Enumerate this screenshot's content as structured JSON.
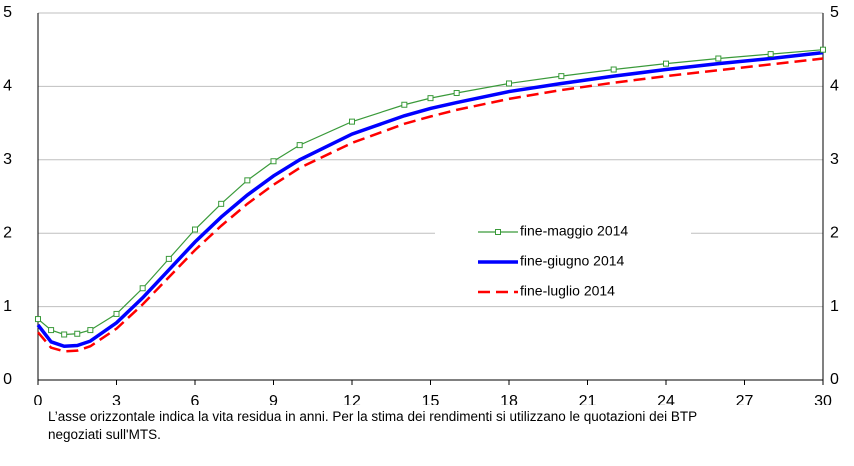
{
  "chart_data": {
    "type": "line",
    "x": [
      0,
      0.5,
      1,
      1.5,
      2,
      3,
      4,
      5,
      6,
      7,
      8,
      9,
      10,
      12,
      14,
      15,
      16,
      18,
      20,
      22,
      24,
      26,
      28,
      30
    ],
    "series": [
      {
        "name": "fine-maggio 2014",
        "color": "#3a9a3a",
        "style": "markers",
        "values": [
          0.83,
          0.68,
          0.62,
          0.63,
          0.68,
          0.9,
          1.25,
          1.65,
          2.05,
          2.4,
          2.72,
          2.98,
          3.2,
          3.52,
          3.75,
          3.84,
          3.91,
          4.04,
          4.14,
          4.23,
          4.31,
          4.38,
          4.44,
          4.5
        ]
      },
      {
        "name": "fine-giugno 2014",
        "color": "#0000ff",
        "style": "solid",
        "values": [
          0.75,
          0.52,
          0.46,
          0.47,
          0.53,
          0.78,
          1.12,
          1.5,
          1.88,
          2.22,
          2.52,
          2.78,
          3.0,
          3.35,
          3.6,
          3.7,
          3.78,
          3.93,
          4.04,
          4.14,
          4.23,
          4.31,
          4.38,
          4.46
        ]
      },
      {
        "name": "fine-luglio 2014",
        "color": "#ff0000",
        "style": "dashed",
        "values": [
          0.65,
          0.44,
          0.39,
          0.4,
          0.46,
          0.7,
          1.03,
          1.4,
          1.77,
          2.1,
          2.4,
          2.66,
          2.89,
          3.23,
          3.49,
          3.59,
          3.68,
          3.83,
          3.95,
          4.05,
          4.14,
          4.22,
          4.3,
          4.38
        ]
      }
    ],
    "xlim": [
      0,
      30
    ],
    "xticks": [
      0,
      3,
      6,
      9,
      12,
      15,
      18,
      21,
      24,
      27,
      30
    ],
    "ylim": [
      0,
      5
    ],
    "yticks": [
      0,
      1,
      2,
      3,
      4,
      5
    ],
    "y2lim": [
      0,
      5
    ],
    "y2ticks": [
      0,
      1,
      2,
      3,
      4,
      5
    ],
    "grid": true,
    "note": "L’asse orizzontale indica la vita residua in anni. Per la stima dei rendimenti si utilizzano le quotazioni dei BTP negoziati sull'MTS."
  }
}
